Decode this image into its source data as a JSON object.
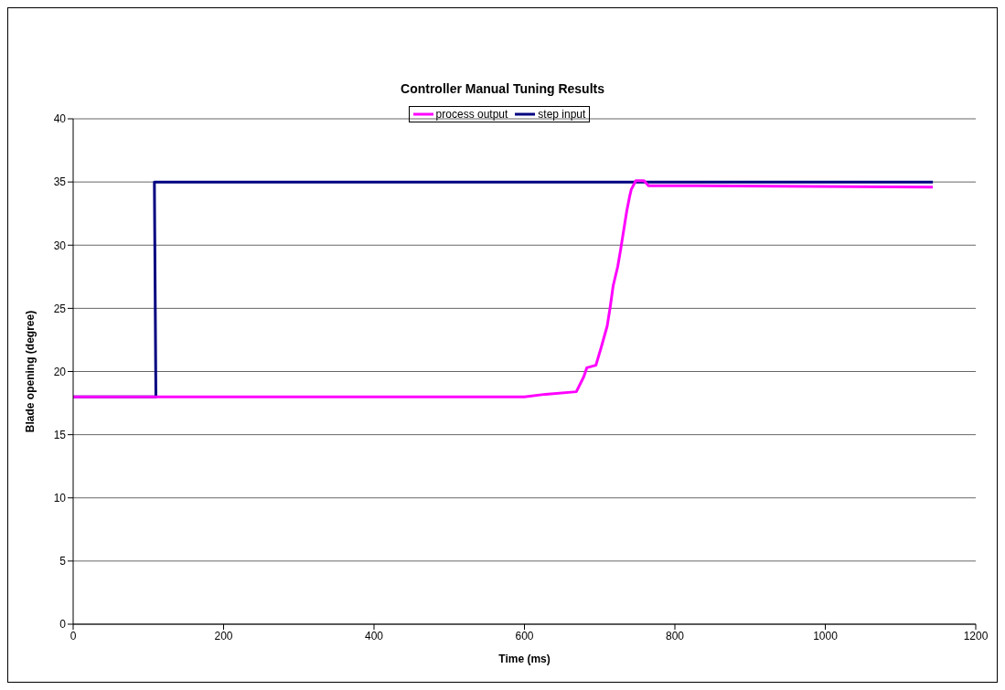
{
  "chart_data": {
    "type": "line",
    "title": "Controller Manual Tuning Results",
    "xlabel": "Time (ms)",
    "ylabel": "Blade opening (degree)",
    "xlim": [
      0,
      1200
    ],
    "xticks": [
      0,
      200,
      400,
      600,
      800,
      1000,
      1200
    ],
    "ylim": [
      0,
      40
    ],
    "yticks": [
      0,
      5,
      10,
      15,
      20,
      25,
      30,
      35,
      40
    ],
    "grid": "y",
    "legend": "top",
    "marker": "none",
    "line_style": "solid",
    "series": [
      {
        "name": "step input",
        "color": "#000080",
        "x": [
          0,
          110,
          108,
          1143
        ],
        "values": [
          18,
          18,
          35,
          35
        ]
      },
      {
        "name": "process output",
        "color": "#ff00ff",
        "x": [
          0,
          300,
          600,
          628,
          669,
          679,
          683,
          695,
          702,
          710,
          714,
          718,
          724,
          728,
          732,
          736,
          740,
          742,
          748,
          759,
          765,
          820,
          1143
        ],
        "values": [
          18,
          18,
          18,
          18.2,
          18.4,
          19.6,
          20.3,
          20.5,
          21.9,
          23.6,
          25.1,
          26.8,
          28.3,
          29.7,
          31.2,
          32.7,
          33.9,
          34.4,
          35.1,
          35.1,
          34.7,
          34.7,
          34.6
        ]
      }
    ]
  }
}
